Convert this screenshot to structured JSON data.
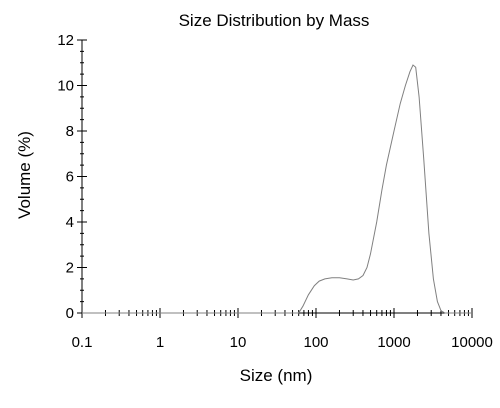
{
  "chart_data": {
    "type": "line",
    "title": "Size Distribution by Mass",
    "xlabel": "Size (nm)",
    "ylabel": "Volume (%)",
    "x_scale": "log",
    "xlim": [
      0.1,
      10000
    ],
    "ylim": [
      0,
      12
    ],
    "x_ticks": [
      0.1,
      1,
      10,
      100,
      1000,
      10000
    ],
    "x_tick_labels": [
      "0.1",
      "1",
      "10",
      "100",
      "1000",
      "10000"
    ],
    "y_ticks": [
      0,
      2,
      4,
      6,
      8,
      10,
      12
    ],
    "y_tick_labels": [
      "0",
      "2",
      "4",
      "6",
      "8",
      "10",
      "12"
    ],
    "grid": false,
    "series": [
      {
        "color": "#808080",
        "x": [
          0.1,
          60,
          68,
          80,
          95,
          110,
          130,
          160,
          200,
          250,
          300,
          350,
          400,
          450,
          500,
          600,
          700,
          800,
          1000,
          1200,
          1400,
          1600,
          1750,
          1900,
          2100,
          2400,
          2800,
          3200,
          3600,
          4000,
          4500,
          10000
        ],
        "y": [
          0,
          0,
          0.3,
          0.8,
          1.2,
          1.4,
          1.5,
          1.55,
          1.55,
          1.5,
          1.45,
          1.5,
          1.65,
          2.0,
          2.6,
          4.0,
          5.4,
          6.5,
          8.0,
          9.2,
          10.0,
          10.6,
          10.9,
          10.8,
          9.5,
          6.8,
          3.5,
          1.5,
          0.5,
          0.1,
          0,
          0
        ]
      }
    ]
  }
}
